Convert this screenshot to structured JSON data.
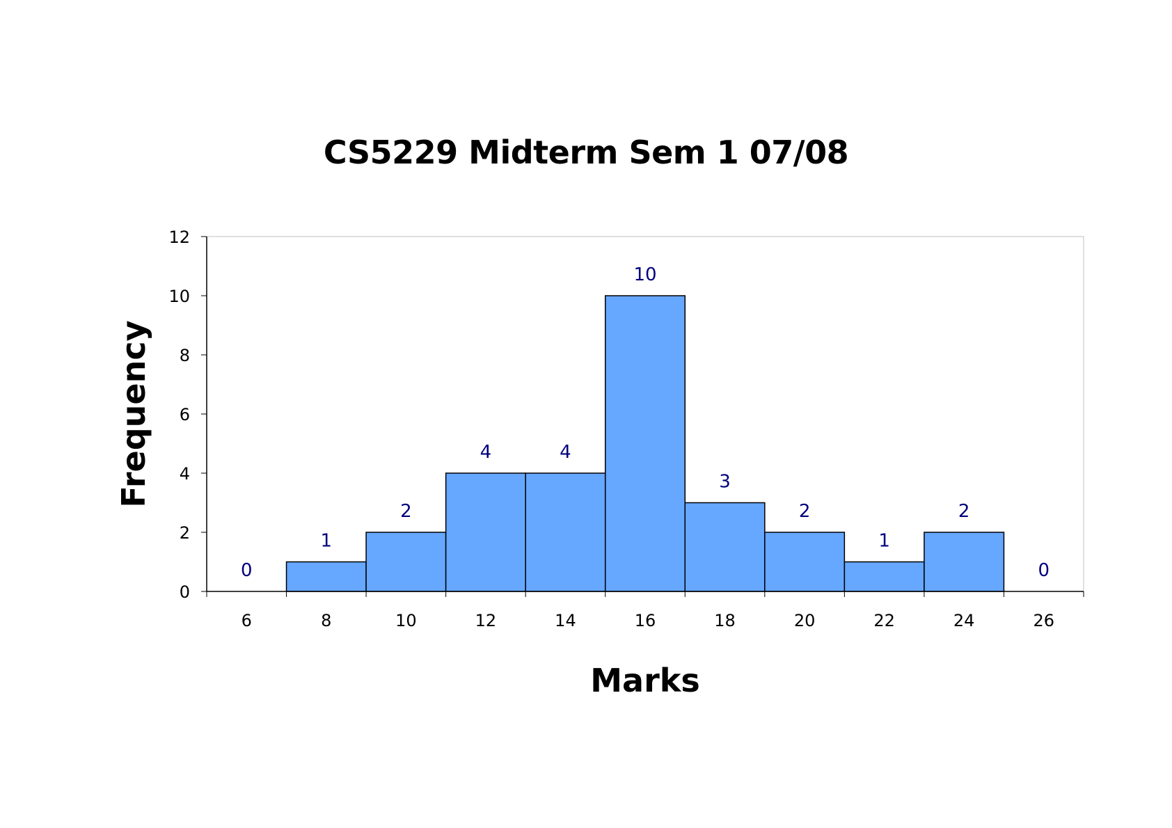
{
  "chart_data": {
    "type": "bar",
    "title": "CS5229 Midterm Sem 1 07/08",
    "xlabel": "Marks",
    "ylabel": "Frequency",
    "categories": [
      "6",
      "8",
      "10",
      "12",
      "14",
      "16",
      "18",
      "20",
      "22",
      "24",
      "26"
    ],
    "values": [
      0,
      1,
      2,
      4,
      4,
      10,
      3,
      2,
      1,
      2,
      0
    ],
    "data_labels": [
      "0",
      "1",
      "2",
      "4",
      "4",
      "10",
      "3",
      "2",
      "1",
      "2",
      "0"
    ],
    "ylim": [
      0,
      12
    ],
    "yticks": [
      "0",
      "2",
      "4",
      "6",
      "8",
      "10",
      "12"
    ],
    "grid": false,
    "legend": "none",
    "bar_color": "#66A7FF",
    "bar_edge_color": "#000000",
    "label_color": "#00007F",
    "plot_border_color": "#C0C0C0"
  }
}
